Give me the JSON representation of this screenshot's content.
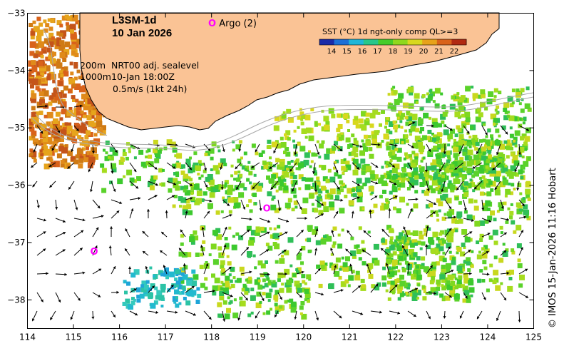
{
  "product": "L3SM-1d",
  "date": "10 Jan 2026",
  "argo_label": "Argo (2)",
  "argo_marker": "O",
  "legend": {
    "title": "SST (°C) 1d ngt-only comp QL>=3",
    "ticks": [
      "14",
      "15",
      "16",
      "17",
      "18",
      "19",
      "20",
      "21",
      "22"
    ],
    "colors": [
      "#1a2aa8",
      "#1d6fd6",
      "#1fb6d8",
      "#27c78a",
      "#46cc2a",
      "#8fd81e",
      "#d8d81e",
      "#e7a21a",
      "#d9621a",
      "#b12a12"
    ]
  },
  "annotations": {
    "depth1": "200m",
    "depth2": "1000m",
    "currents_line1": "NRT00 adj. sealevel",
    "currents_line2": "10-Jan 18:00Z",
    "scale": "0.5m/s (1kt 24h)"
  },
  "credit": "© IMOS 15-Jan-2026 11:16 Hobart",
  "colors": {
    "land": "#fac395",
    "coast": "#000000",
    "argo": "#ff00ff"
  },
  "axes": {
    "x_ticks": [
      "114",
      "115",
      "116",
      "117",
      "118",
      "119",
      "120",
      "121",
      "122",
      "123",
      "124",
      "125"
    ],
    "y_ticks": [
      "−33",
      "−34",
      "−35",
      "−36",
      "−37",
      "−38"
    ]
  },
  "argo_floats": [
    {
      "lon": 119.2,
      "lat": -36.4
    },
    {
      "lon": 115.45,
      "lat": -37.15
    }
  ]
}
